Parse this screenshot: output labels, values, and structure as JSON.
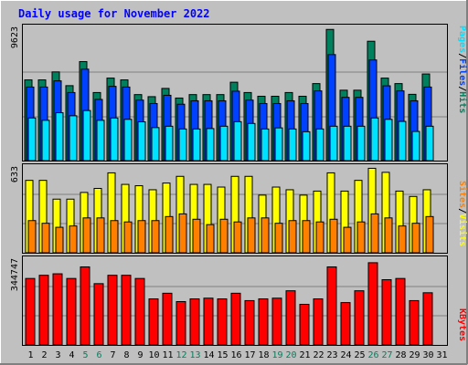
{
  "title": "Daily usage for November 2022",
  "colors": {
    "background": "#c0c0c0",
    "title": "#0000ff",
    "weekend_day": "#00805c",
    "weekday": "#000000",
    "hits": "#00805c",
    "files": "#0040ff",
    "pages": "#00e0ff",
    "visits": "#ffff00",
    "sites": "#ff8000",
    "kbytes": "#ff0000"
  },
  "chart_data": [
    {
      "type": "bar",
      "panel": "hits-files-pages",
      "x": [
        1,
        2,
        3,
        4,
        5,
        6,
        7,
        8,
        9,
        10,
        11,
        12,
        13,
        14,
        15,
        16,
        17,
        18,
        19,
        20,
        21,
        22,
        23,
        24,
        25,
        26,
        27,
        28,
        29,
        30,
        31
      ],
      "ymax_label": "9623",
      "ylim": [
        0,
        9623
      ],
      "legend": {
        "hits": "Hits",
        "files": "Files",
        "pages": "Pages",
        "separator": "/"
      },
      "series": [
        {
          "name": "Hits",
          "values": [
            5870,
            5870,
            6450,
            5450,
            7200,
            4950,
            6000,
            5870,
            4800,
            4650,
            5250,
            4550,
            4800,
            4800,
            4800,
            5700,
            4950,
            4680,
            4680,
            4950,
            4680,
            5600,
            9540,
            5120,
            5120,
            8680,
            6000,
            5600,
            4820,
            6300,
            0
          ]
        },
        {
          "name": "Files",
          "values": [
            5350,
            5350,
            5800,
            4950,
            6650,
            4450,
            5400,
            5350,
            4400,
            4150,
            4750,
            4100,
            4350,
            4350,
            4350,
            5050,
            4400,
            4150,
            4150,
            4350,
            4150,
            5070,
            7710,
            4600,
            4600,
            7320,
            5440,
            5070,
            4350,
            5350,
            0
          ]
        },
        {
          "name": "Pages",
          "values": [
            3100,
            2930,
            3480,
            3260,
            3640,
            2930,
            3100,
            3000,
            2820,
            2400,
            2500,
            2300,
            2300,
            2330,
            2500,
            2830,
            2700,
            2300,
            2380,
            2300,
            2100,
            2300,
            2500,
            2500,
            2500,
            3100,
            3000,
            2850,
            2120,
            2500,
            0
          ]
        }
      ]
    },
    {
      "type": "bar",
      "panel": "visits-sites",
      "x": [
        1,
        2,
        3,
        4,
        5,
        6,
        7,
        8,
        9,
        10,
        11,
        12,
        13,
        14,
        15,
        16,
        17,
        18,
        19,
        20,
        21,
        22,
        23,
        24,
        25,
        26,
        27,
        28,
        29,
        30,
        31
      ],
      "ymax_label": "633",
      "ylim": [
        0,
        633
      ],
      "legend": {
        "visits": "Visits",
        "sites": "Sites",
        "separator": "/"
      },
      "series": [
        {
          "name": "Visits",
          "values": [
            540,
            540,
            400,
            400,
            450,
            480,
            596,
            510,
            500,
            470,
            520,
            570,
            510,
            510,
            490,
            570,
            570,
            430,
            490,
            470,
            430,
            460,
            596,
            460,
            540,
            630,
            600,
            460,
            420,
            470,
            0
          ]
        },
        {
          "name": "Sites",
          "values": [
            240,
            220,
            190,
            200,
            260,
            260,
            240,
            230,
            240,
            240,
            270,
            290,
            250,
            210,
            250,
            230,
            260,
            260,
            220,
            240,
            240,
            230,
            250,
            190,
            230,
            290,
            260,
            200,
            220,
            270,
            0
          ]
        }
      ]
    },
    {
      "type": "bar",
      "panel": "kbytes",
      "x": [
        1,
        2,
        3,
        4,
        5,
        6,
        7,
        8,
        9,
        10,
        11,
        12,
        13,
        14,
        15,
        16,
        17,
        18,
        19,
        20,
        21,
        22,
        23,
        24,
        25,
        26,
        27,
        28,
        29,
        30,
        31
      ],
      "ymax_label": "344747",
      "ylim": [
        0,
        344747
      ],
      "legend": {
        "kbytes": "KBytes"
      },
      "series": [
        {
          "name": "KBytes",
          "values": [
            270000,
            283000,
            289000,
            270000,
            317000,
            249000,
            283000,
            283000,
            270000,
            187000,
            210000,
            176000,
            187000,
            190000,
            187000,
            210000,
            180000,
            187000,
            190000,
            220000,
            165000,
            187000,
            317000,
            172000,
            220000,
            334000,
            265000,
            270000,
            180000,
            212000,
            0
          ]
        }
      ]
    }
  ],
  "x_axis": {
    "labels": [
      "1",
      "2",
      "3",
      "4",
      "5",
      "6",
      "7",
      "8",
      "9",
      "10",
      "11",
      "12",
      "13",
      "14",
      "15",
      "16",
      "17",
      "18",
      "19",
      "20",
      "21",
      "22",
      "23",
      "24",
      "25",
      "26",
      "27",
      "28",
      "29",
      "30",
      "31"
    ],
    "weekend_days": [
      5,
      6,
      12,
      13,
      19,
      20,
      26,
      27
    ]
  }
}
